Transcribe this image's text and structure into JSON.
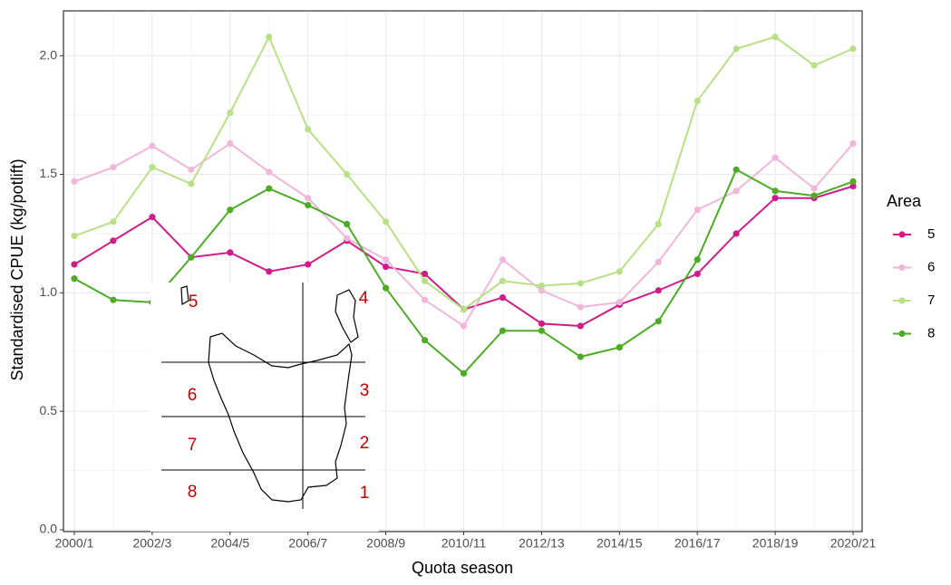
{
  "chart_data": {
    "type": "line",
    "x_label": "Quota season",
    "y_label": "Standardised CPUE (kg/potlift)",
    "categories": [
      "2000/1",
      null,
      "2002/3",
      null,
      "2004/5",
      null,
      "2006/7",
      null,
      "2008/9",
      null,
      "2010/11",
      null,
      "2012/13",
      null,
      "2014/15",
      null,
      "2016/17",
      null,
      "2018/19",
      null,
      "2020/21"
    ],
    "ylim": [
      0,
      2.19
    ],
    "yticks": [
      {
        "value": 0,
        "label": "0.0"
      },
      0.5,
      {
        "value": 1,
        "label": "1.0"
      },
      1.5,
      {
        "value": 2,
        "label": "2.0"
      }
    ],
    "grid": true,
    "legend_title": "Area",
    "legend_position": "right",
    "series": [
      {
        "name": "5",
        "color": "#d01c8b",
        "values": [
          1.12,
          1.22,
          1.32,
          1.15,
          1.17,
          1.09,
          1.12,
          1.22,
          1.11,
          1.08,
          0.93,
          0.98,
          0.87,
          0.86,
          0.95,
          1.01,
          1.08,
          1.25,
          1.4,
          1.4,
          1.45
        ]
      },
      {
        "name": "6",
        "color": "#f1b6da",
        "values": [
          1.47,
          1.53,
          1.62,
          1.52,
          1.63,
          1.51,
          1.4,
          1.23,
          1.14,
          0.97,
          0.86,
          1.14,
          1.01,
          0.94,
          0.96,
          1.13,
          1.35,
          1.43,
          1.57,
          1.44,
          1.63
        ]
      },
      {
        "name": "7",
        "color": "#b8e186",
        "values": [
          1.24,
          1.3,
          1.53,
          1.46,
          1.76,
          2.08,
          1.69,
          1.5,
          1.3,
          1.05,
          0.93,
          1.05,
          1.03,
          1.04,
          1.09,
          1.29,
          1.81,
          2.03,
          2.08,
          1.96,
          2.03
        ]
      },
      {
        "name": "8",
        "color": "#4dac26",
        "values": [
          1.06,
          0.97,
          0.96,
          1.15,
          1.35,
          1.44,
          1.37,
          1.29,
          1.02,
          0.8,
          0.66,
          0.84,
          0.84,
          0.73,
          0.77,
          0.88,
          1.14,
          1.52,
          1.43,
          1.41,
          1.47
        ]
      }
    ],
    "inset_labels": [
      "5",
      "4",
      "6",
      "3",
      "7",
      "2",
      "8",
      "1"
    ]
  }
}
